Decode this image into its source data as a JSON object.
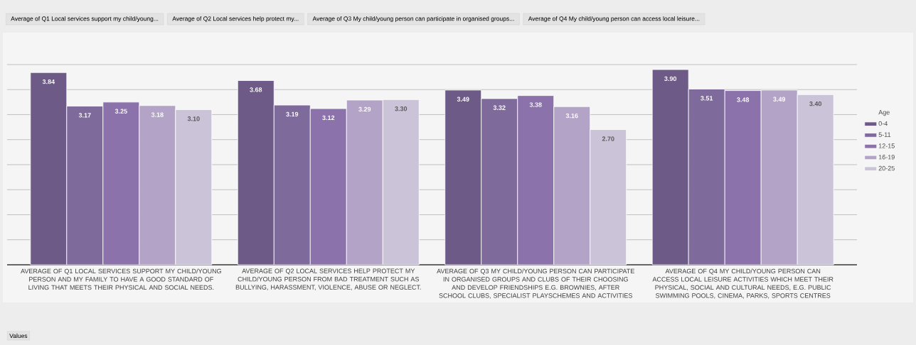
{
  "chart_data": {
    "type": "bar",
    "categories": [
      "AVERAGE OF Q1 LOCAL SERVICES SUPPORT MY CHILD/YOUNG PERSON AND MY FAMILY TO HAVE A GOOD STANDARD OF LIVING THAT MEETS THEIR PHYSICAL AND SOCIAL NEEDS.",
      "AVERAGE OF Q2 LOCAL SERVICES HELP PROTECT MY CHILD/YOUNG PERSON FROM BAD TREATMENT SUCH AS BULLYING, HARASSMENT, VIOLENCE, ABUSE OR NEGLECT.",
      "AVERAGE OF Q3 MY CHILD/YOUNG PERSON CAN PARTICIPATE IN ORGANISED GROUPS AND CLUBS OF THEIR CHOOSING AND DEVELOP FRIENDSHIPS E.G. BROWNIES, AFTER SCHOOL CLUBS, SPECIALIST PLAYSCHEMES AND ACTIVITIES",
      "AVERAGE OF Q4 MY CHILD/YOUNG PERSON CAN ACCESS LOCAL LEISURE ACTIVITIES WHICH MEET THEIR PHYSICAL, SOCIAL AND CULTURAL NEEDS, E.G. PUBLIC SWIMMING POOLS, CINEMA, PARKS, SPORTS CENTRES"
    ],
    "series": [
      {
        "name": "0-4",
        "color": "#6d5a87",
        "values": [
          3.84,
          3.68,
          3.49,
          3.9
        ],
        "value_labels": [
          "3.84",
          "3.68",
          "3.49",
          "3.90"
        ]
      },
      {
        "name": "5-11",
        "color": "#7f6a9c",
        "values": [
          3.17,
          3.19,
          3.32,
          3.51
        ],
        "value_labels": [
          "3.17",
          "3.19",
          "3.32",
          "3.51"
        ]
      },
      {
        "name": "12-15",
        "color": "#8b72aa",
        "values": [
          3.25,
          3.12,
          3.38,
          3.48
        ],
        "value_labels": [
          "3.25",
          "3.12",
          "3.38",
          "3.48"
        ]
      },
      {
        "name": "16-19",
        "color": "#b3a3c6",
        "values": [
          3.18,
          3.29,
          3.16,
          3.49
        ],
        "value_labels": [
          "3.18",
          "3.29",
          "3.16",
          "3.49"
        ]
      },
      {
        "name": "20-25",
        "color": "#cbc3d8",
        "values": [
          3.1,
          3.3,
          2.7,
          3.4
        ],
        "value_labels": [
          "3.10",
          "3.30",
          "2.70",
          "3.40"
        ]
      }
    ],
    "grid": "y",
    "tick_labels": "x",
    "legend": "right",
    "legend_title": "Age",
    "annotations": [
      "Average of Q1 Local services support my child/young...",
      "Average of Q2 Local services help protect my...",
      "Average of Q3 My child/young person can participate in organised groups...",
      "Average of Q4 My child/young person can access local leisure...",
      "Values"
    ]
  }
}
